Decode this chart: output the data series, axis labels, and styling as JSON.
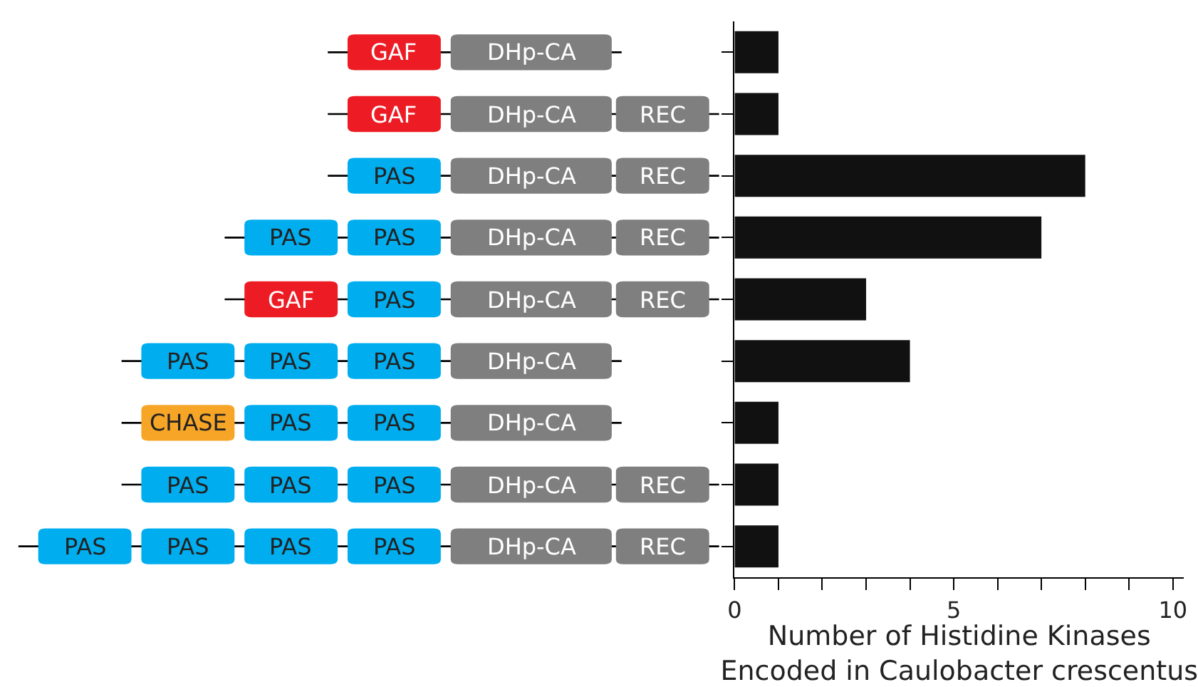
{
  "chart_data": {
    "type": "bar",
    "orientation": "horizontal",
    "categories": [
      "GAF DHp-CA",
      "GAF DHp-CA REC",
      "PAS DHp-CA REC",
      "PAS PAS DHp-CA REC",
      "GAF PAS DHp-CA REC",
      "PAS PAS PAS DHp-CA",
      "CHASE PAS PAS DHp-CA",
      "PAS PAS PAS DHp-CA REC",
      "PAS PAS PAS PAS DHp-CA REC"
    ],
    "values": [
      1,
      1,
      8,
      7,
      3,
      4,
      1,
      1,
      1
    ],
    "color": "#111111",
    "xlim": [
      0,
      10.25
    ],
    "xticks": [
      0,
      {
        "value": 1,
        "label": null
      },
      {
        "value": 2,
        "label": null
      },
      {
        "value": 3,
        "label": null
      },
      {
        "value": 4,
        "label": null
      },
      5,
      {
        "value": 6,
        "label": null
      },
      {
        "value": 7,
        "label": null
      },
      {
        "value": 8,
        "label": null
      },
      {
        "value": 9,
        "label": null
      },
      10
    ],
    "xlabel": "Number of Histidine Kinases\nEncoded in Caulobacter crescentus",
    "legend": false
  }
}
